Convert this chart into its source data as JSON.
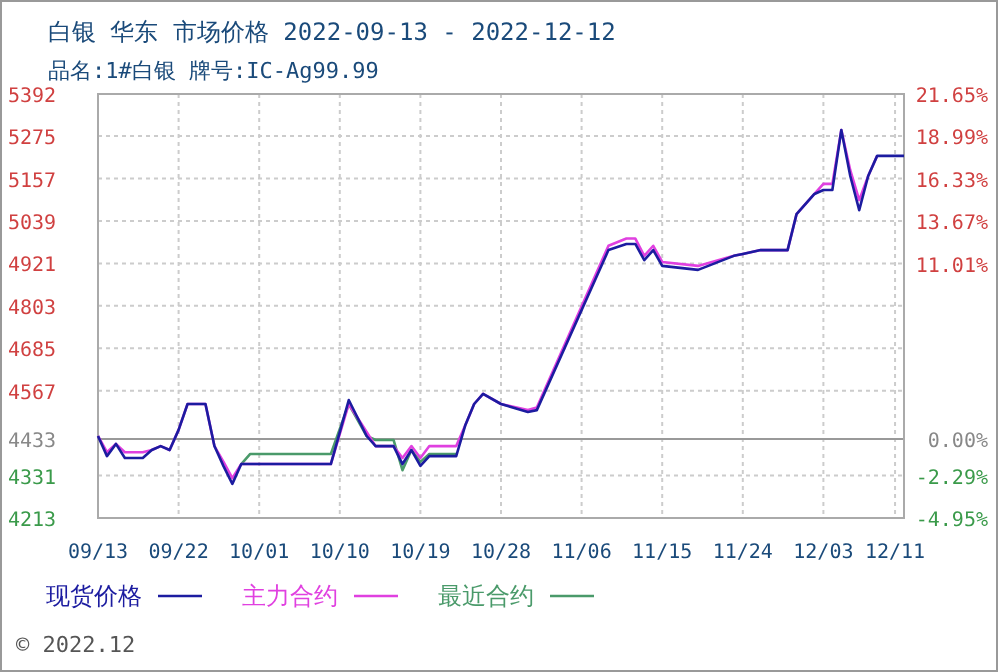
{
  "chart_data": {
    "type": "line",
    "title": "白银 华东 市场价格 2022-09-13 - 2022-12-12",
    "subtitle": "品名:1#白银 牌号:IC-Ag99.99",
    "x": [
      "2022-09-13",
      "2022-09-14",
      "2022-09-15",
      "2022-09-16",
      "2022-09-18",
      "2022-09-19",
      "2022-09-20",
      "2022-09-21",
      "2022-09-22",
      "2022-09-23",
      "2022-09-25",
      "2022-09-26",
      "2022-09-27",
      "2022-09-28",
      "2022-09-29",
      "2022-09-30",
      "2022-10-09",
      "2022-10-11",
      "2022-10-13",
      "2022-10-14",
      "2022-10-16",
      "2022-10-17",
      "2022-10-18",
      "2022-10-19",
      "2022-10-20",
      "2022-10-23",
      "2022-10-24",
      "2022-10-25",
      "2022-10-26",
      "2022-10-28",
      "2022-10-31",
      "2022-11-01",
      "2022-11-09",
      "2022-11-11",
      "2022-11-12",
      "2022-11-13",
      "2022-11-14",
      "2022-11-15",
      "2022-11-19",
      "2022-11-23",
      "2022-11-24",
      "2022-11-26",
      "2022-11-29",
      "2022-11-30",
      "2022-12-02",
      "2022-12-03",
      "2022-12-04",
      "2022-12-05",
      "2022-12-06",
      "2022-12-07",
      "2022-12-08",
      "2022-12-09",
      "2022-12-11",
      "2022-12-12"
    ],
    "series": [
      {
        "name": "现货价格",
        "color": "#1c1ca0",
        "values": [
          4441,
          4385,
          4419,
          4380,
          4380,
          4402,
          4413,
          4402,
          4458,
          4530,
          4530,
          4413,
          4358,
          4308,
          4363,
          4363,
          4363,
          4541,
          4441,
          4413,
          4413,
          4363,
          4402,
          4358,
          4385,
          4385,
          4470,
          4530,
          4558,
          4530,
          4508,
          4513,
          4958,
          4975,
          4975,
          4930,
          4958,
          4914,
          4903,
          4942,
          4947,
          4958,
          4958,
          5058,
          5114,
          5125,
          5125,
          5292,
          5164,
          5069,
          5164,
          5220,
          5220,
          5220
        ]
      },
      {
        "name": "主力合约",
        "color": "#e040e0",
        "values": [
          4441,
          4396,
          4419,
          4396,
          4396,
          4402,
          4413,
          4402,
          4458,
          4530,
          4530,
          4413,
          4370,
          4324,
          4363,
          4363,
          4363,
          4530,
          4452,
          4413,
          4413,
          4380,
          4413,
          4380,
          4413,
          4413,
          4470,
          4530,
          4558,
          4530,
          4513,
          4520,
          4970,
          4990,
          4990,
          4942,
          4970,
          4925,
          4914,
          4942,
          4947,
          4958,
          4958,
          5058,
          5114,
          5142,
          5142,
          5292,
          5180,
          5097,
          5164,
          5220,
          null,
          null
        ]
      },
      {
        "name": "最近合约",
        "color": "#4a9a6a",
        "values": [
          null,
          null,
          null,
          null,
          null,
          null,
          null,
          null,
          null,
          null,
          null,
          null,
          null,
          null,
          4363,
          4391,
          4391,
          4530,
          4441,
          4430,
          4430,
          4346,
          4402,
          4369,
          4391,
          4391,
          null,
          null,
          null,
          null,
          null,
          null,
          null,
          null,
          null,
          null,
          null,
          null,
          null,
          null,
          null,
          null,
          null,
          null,
          null,
          null,
          null,
          null,
          null,
          null,
          null,
          null,
          null,
          null
        ]
      }
    ],
    "xlim": [
      "2022-09-13",
      "2022-12-12"
    ],
    "xticks": [
      {
        "value": "2022-09-13",
        "label": "09/13"
      },
      {
        "value": "2022-09-22",
        "label": "09/22"
      },
      {
        "value": "2022-10-01",
        "label": "10/01"
      },
      {
        "value": "2022-10-10",
        "label": "10/10"
      },
      {
        "value": "2022-10-19",
        "label": "10/19"
      },
      {
        "value": "2022-10-28",
        "label": "10/28"
      },
      {
        "value": "2022-11-06",
        "label": "11/06"
      },
      {
        "value": "2022-11-15",
        "label": "11/15"
      },
      {
        "value": "2022-11-24",
        "label": "11/24"
      },
      {
        "value": "2022-12-03",
        "label": "12/03"
      },
      {
        "value": "2022-12-11",
        "label": "12/11"
      }
    ],
    "ylim": [
      4213,
      5392
    ],
    "yticks": [
      5392,
      5275,
      5157,
      5039,
      4921,
      4803,
      4685,
      4567,
      4433,
      4331,
      4213
    ],
    "y2lim": [
      -4.95,
      21.65
    ],
    "y2ticks": [
      {
        "value": 21.65,
        "label": "21.65%"
      },
      {
        "value": 18.99,
        "label": "18.99%"
      },
      {
        "value": 16.33,
        "label": "16.33%"
      },
      {
        "value": 13.67,
        "label": "13.67%"
      },
      {
        "value": 11.01,
        "label": "11.01%"
      },
      {
        "value": 0,
        "label": "0.00%"
      },
      {
        "value": -2.29,
        "label": "-2.29%"
      },
      {
        "value": -4.95,
        "label": "-4.95%"
      }
    ],
    "ref_lines": [
      {
        "axis": "y",
        "value": 4433,
        "color": "#999999"
      }
    ],
    "grid": true,
    "legend": "bottom",
    "marker": "none",
    "line_style": "solid",
    "annotations": [
      "© 2022.12"
    ]
  }
}
